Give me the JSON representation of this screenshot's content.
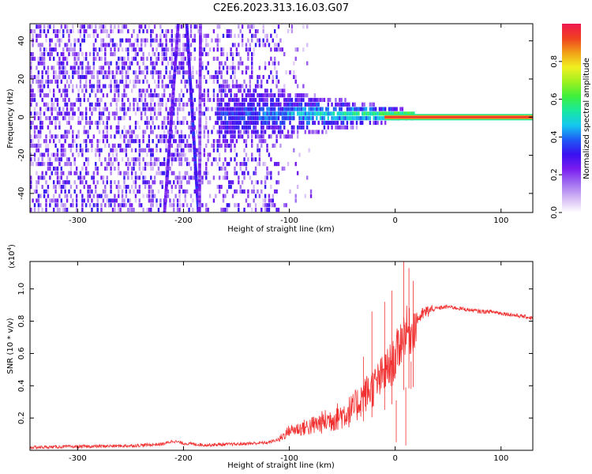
{
  "figure_title": "C2E6.2023.313.16.03.G07",
  "chart_data": [
    {
      "type": "heatmap",
      "xlabel": "Height of straight line (km)",
      "ylabel": "Frequency (Hz)",
      "xlim": [
        -345,
        130
      ],
      "ylim": [
        -50,
        49
      ],
      "xticks": [
        -300,
        -200,
        -100,
        0,
        100
      ],
      "yticks": [
        -40,
        -20,
        0,
        20,
        40
      ],
      "colorbar": {
        "label": "Normalized spectral amplitude",
        "range": [
          0.0,
          1.0
        ],
        "ticks": [
          0.0,
          0.2,
          0.4,
          0.6,
          0.8
        ],
        "colormap": [
          "#ffffff",
          "#d4b8f5",
          "#a070f0",
          "#7a1cf0",
          "#3a10f0",
          "#1f5af5",
          "#14c8f0",
          "#18e8a0",
          "#3ef03c",
          "#a0f020",
          "#f0f020",
          "#f0a018",
          "#f04020",
          "#f01850"
        ]
      },
      "features": [
        {
          "kind": "diagonal streak",
          "x_at_top": -205,
          "x_at_bottom": -218,
          "intensity": 0.25
        },
        {
          "kind": "diagonal streak",
          "x_at_top": -197,
          "x_at_bottom": -186,
          "intensity": 0.3
        },
        {
          "kind": "diagonal streak",
          "x_at_top": -184,
          "x_at_bottom": -185,
          "intensity": 0.2
        },
        {
          "kind": "narrow carrier line",
          "frequency_hz": 0,
          "x_from": -10,
          "x_to": 130,
          "intensity": 0.95
        },
        {
          "kind": "band around 0 Hz",
          "x_from": -170,
          "x_to": 20,
          "half_width_hz_at_start": 18,
          "half_width_hz_at_end": 2
        }
      ]
    },
    {
      "type": "line",
      "ylabel": "SNR (10 * v/v)",
      "xlabel": "Height of straight line (km)",
      "y_multiplier_label": "(x10",
      "y_multiplier_exp": "4",
      "xlim": [
        -345,
        130
      ],
      "ylim": [
        0,
        1.17
      ],
      "xticks": [
        -300,
        -200,
        -100,
        0,
        100
      ],
      "yticks": [
        0.2,
        0.4,
        0.6,
        0.8,
        1.0
      ],
      "series": [
        {
          "color": "#f03030",
          "x": [
            -345,
            -300,
            -250,
            -220,
            -210,
            -200,
            -180,
            -150,
            -120,
            -110,
            -100,
            -80,
            -60,
            -40,
            -30,
            -20,
            -10,
            0,
            5,
            10,
            15,
            20,
            30,
            40,
            50,
            60,
            70,
            80,
            90,
            100,
            110,
            120,
            130
          ],
          "values": [
            0.02,
            0.025,
            0.03,
            0.04,
            0.06,
            0.045,
            0.035,
            0.04,
            0.05,
            0.07,
            0.13,
            0.16,
            0.21,
            0.27,
            0.36,
            0.42,
            0.5,
            0.6,
            0.7,
            0.78,
            0.76,
            0.82,
            0.86,
            0.88,
            0.89,
            0.88,
            0.87,
            0.86,
            0.86,
            0.85,
            0.84,
            0.83,
            0.82
          ],
          "spikes": [
            [
              -30,
              0.58
            ],
            [
              -22,
              0.86
            ],
            [
              -10,
              0.92
            ],
            [
              -3,
              0.99
            ],
            [
              1,
              0.05
            ],
            [
              8,
              1.17
            ],
            [
              10,
              0.03
            ],
            [
              13,
              1.13
            ],
            [
              15,
              0.55
            ],
            [
              17,
              1.05
            ]
          ]
        }
      ]
    }
  ]
}
